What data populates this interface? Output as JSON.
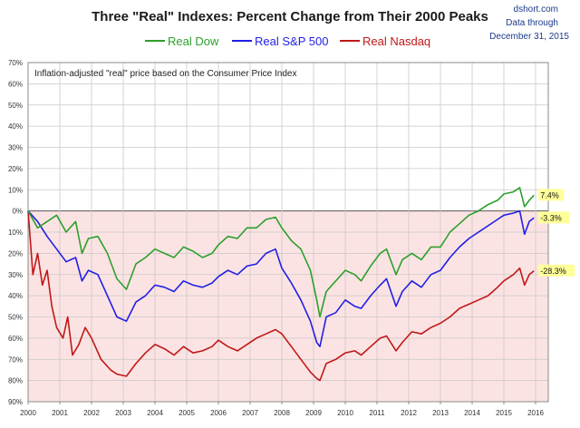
{
  "chart_data": {
    "type": "line",
    "title": "Three \"Real\" Indexes: Percent Change from Their 2000 Peaks",
    "annotation": "Inflation-adjusted \"real\" price based on the Consumer Price Index",
    "source": {
      "site": "dshort.com",
      "line2": "Data through",
      "line3": "December 31, 2015"
    },
    "x_ticks": [
      "2000",
      "2001",
      "2002",
      "2003",
      "2004",
      "2005",
      "2006",
      "2007",
      "2008",
      "2009",
      "2010",
      "2011",
      "2012",
      "2013",
      "2014",
      "2015",
      "2016"
    ],
    "y_ticks": [
      {
        "value": 70,
        "label": "70%"
      },
      {
        "value": 60,
        "label": "60%"
      },
      {
        "value": 50,
        "label": "50%"
      },
      {
        "value": 40,
        "label": "40%"
      },
      {
        "value": 30,
        "label": "30%"
      },
      {
        "value": 20,
        "label": "20%"
      },
      {
        "value": 10,
        "label": "10%"
      },
      {
        "value": 0,
        "label": "0%"
      },
      {
        "value": -10,
        "label": "10%"
      },
      {
        "value": -20,
        "label": "20%"
      },
      {
        "value": -30,
        "label": "30%"
      },
      {
        "value": -40,
        "label": "40%"
      },
      {
        "value": -50,
        "label": "50%"
      },
      {
        "value": -60,
        "label": "60%"
      },
      {
        "value": -70,
        "label": "70%"
      },
      {
        "value": -80,
        "label": "80%"
      },
      {
        "value": -90,
        "label": "90%"
      }
    ],
    "xlim": [
      2000,
      2016.4
    ],
    "ylim": [
      -90,
      70
    ],
    "grid": true,
    "legend_position": "top",
    "negative_region_color": "#fce3e3",
    "series": [
      {
        "name": "Real Dow",
        "color": "#2ca02c",
        "end_label": "7.4%",
        "x": [
          2000.0,
          2000.3,
          2000.6,
          2000.9,
          2001.2,
          2001.5,
          2001.7,
          2001.9,
          2002.2,
          2002.5,
          2002.8,
          2003.1,
          2003.4,
          2003.7,
          2004.0,
          2004.3,
          2004.6,
          2004.9,
          2005.2,
          2005.5,
          2005.8,
          2006.0,
          2006.3,
          2006.6,
          2006.9,
          2007.2,
          2007.5,
          2007.8,
          2008.0,
          2008.3,
          2008.6,
          2008.9,
          2009.1,
          2009.2,
          2009.4,
          2009.7,
          2010.0,
          2010.3,
          2010.5,
          2010.8,
          2011.1,
          2011.3,
          2011.6,
          2011.8,
          2012.1,
          2012.4,
          2012.7,
          2013.0,
          2013.3,
          2013.6,
          2013.9,
          2014.2,
          2014.5,
          2014.8,
          2015.0,
          2015.3,
          2015.5,
          2015.65,
          2015.8,
          2015.95
        ],
        "y": [
          0,
          -8,
          -5,
          -2,
          -10,
          -5,
          -20,
          -13,
          -12,
          -20,
          -32,
          -37,
          -25,
          -22,
          -18,
          -20,
          -22,
          -17,
          -19,
          -22,
          -20,
          -16,
          -12,
          -13,
          -8,
          -8,
          -4,
          -3,
          -8,
          -14,
          -18,
          -28,
          -42,
          -50,
          -38,
          -33,
          -28,
          -30,
          -33,
          -26,
          -20,
          -18,
          -30,
          -23,
          -20,
          -23,
          -17,
          -17,
          -10,
          -6,
          -2,
          0,
          3,
          5,
          8,
          9,
          11,
          2,
          5,
          7.4
        ]
      },
      {
        "name": "Real S&P 500",
        "color": "#1f1fe6",
        "end_label": "-3.3%",
        "x": [
          2000.0,
          2000.3,
          2000.6,
          2000.9,
          2001.2,
          2001.5,
          2001.7,
          2001.9,
          2002.2,
          2002.5,
          2002.8,
          2003.1,
          2003.4,
          2003.7,
          2004.0,
          2004.3,
          2004.6,
          2004.9,
          2005.2,
          2005.5,
          2005.8,
          2006.0,
          2006.3,
          2006.6,
          2006.9,
          2007.2,
          2007.5,
          2007.8,
          2008.0,
          2008.3,
          2008.6,
          2008.9,
          2009.1,
          2009.2,
          2009.4,
          2009.7,
          2010.0,
          2010.3,
          2010.5,
          2010.8,
          2011.1,
          2011.3,
          2011.6,
          2011.8,
          2012.1,
          2012.4,
          2012.7,
          2013.0,
          2013.3,
          2013.6,
          2013.9,
          2014.2,
          2014.5,
          2014.8,
          2015.0,
          2015.3,
          2015.5,
          2015.65,
          2015.8,
          2015.95
        ],
        "y": [
          0,
          -5,
          -12,
          -18,
          -24,
          -22,
          -33,
          -28,
          -30,
          -40,
          -50,
          -52,
          -43,
          -40,
          -35,
          -36,
          -38,
          -33,
          -35,
          -36,
          -34,
          -31,
          -28,
          -30,
          -26,
          -25,
          -20,
          -18,
          -27,
          -34,
          -42,
          -52,
          -62,
          -64,
          -50,
          -48,
          -42,
          -45,
          -46,
          -40,
          -35,
          -32,
          -45,
          -38,
          -33,
          -36,
          -30,
          -28,
          -22,
          -17,
          -13,
          -10,
          -7,
          -4,
          -2,
          -1,
          0,
          -11,
          -5,
          -3.3
        ]
      },
      {
        "name": "Real Nasdaq",
        "color": "#c01818",
        "end_label": "-28.3%",
        "x": [
          2000.0,
          2000.15,
          2000.3,
          2000.45,
          2000.6,
          2000.75,
          2000.9,
          2001.1,
          2001.25,
          2001.4,
          2001.6,
          2001.8,
          2002.0,
          2002.3,
          2002.6,
          2002.8,
          2003.1,
          2003.4,
          2003.7,
          2004.0,
          2004.3,
          2004.6,
          2004.9,
          2005.2,
          2005.5,
          2005.8,
          2006.0,
          2006.3,
          2006.6,
          2006.9,
          2007.2,
          2007.5,
          2007.8,
          2008.0,
          2008.3,
          2008.6,
          2008.9,
          2009.1,
          2009.2,
          2009.4,
          2009.7,
          2010.0,
          2010.3,
          2010.5,
          2010.8,
          2011.1,
          2011.3,
          2011.6,
          2011.8,
          2012.1,
          2012.4,
          2012.7,
          2013.0,
          2013.3,
          2013.6,
          2013.9,
          2014.2,
          2014.5,
          2014.8,
          2015.0,
          2015.3,
          2015.5,
          2015.65,
          2015.8,
          2015.95
        ],
        "y": [
          0,
          -30,
          -20,
          -35,
          -28,
          -45,
          -55,
          -60,
          -50,
          -68,
          -63,
          -55,
          -60,
          -70,
          -75,
          -77,
          -78,
          -72,
          -67,
          -63,
          -65,
          -68,
          -64,
          -67,
          -66,
          -64,
          -61,
          -64,
          -66,
          -63,
          -60,
          -58,
          -56,
          -58,
          -64,
          -70,
          -76,
          -79,
          -80,
          -72,
          -70,
          -67,
          -66,
          -68,
          -64,
          -60,
          -59,
          -66,
          -62,
          -57,
          -58,
          -55,
          -53,
          -50,
          -46,
          -44,
          -42,
          -40,
          -36,
          -33,
          -30,
          -27,
          -35,
          -30,
          -28.3
        ]
      }
    ]
  }
}
